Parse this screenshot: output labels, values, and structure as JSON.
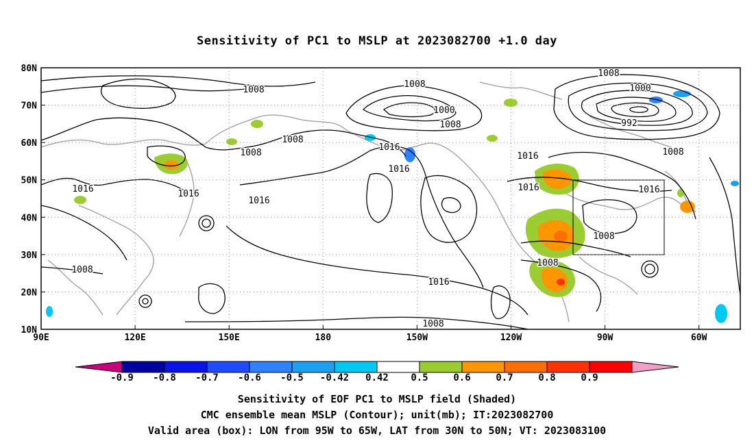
{
  "chart_data": {
    "type": "heatmap",
    "title": "Sensitivity of PC1 to MSLP at 2023082700 +1.0 day",
    "x_ticks": [
      "90E",
      "120E",
      "150E",
      "180",
      "150W",
      "120W",
      "90W",
      "60W"
    ],
    "y_ticks": [
      "10N",
      "20N",
      "30N",
      "40N",
      "50N",
      "60N",
      "70N",
      "80N"
    ],
    "x_range": [
      "90E",
      "45W"
    ],
    "y_range": [
      "10N",
      "80N"
    ],
    "grid": true,
    "colorbar": {
      "levels": [
        "-0.9",
        "-0.8",
        "-0.7",
        "-0.6",
        "-0.5",
        "-0.42",
        "0.42",
        "0.5",
        "0.6",
        "0.7",
        "0.8",
        "0.9"
      ],
      "colors": [
        "#c8007d",
        "#0000a0",
        "#0a14e6",
        "#1e4bff",
        "#2d82ff",
        "#1ea0f0",
        "#00c8f5",
        "#ffffff",
        "#9bcd32",
        "#ff9600",
        "#ff6e00",
        "#ff3200",
        "#ff0000",
        "#f0a0c8"
      ]
    },
    "contour_labels": [
      "1008",
      "1008",
      "1008",
      "1008",
      "1000",
      "1008",
      "1008",
      "1000",
      "992",
      "1016",
      "1016",
      "1016",
      "1016",
      "1016",
      "1016",
      "1016",
      "1016",
      "1016",
      "1008",
      "1008",
      "1008",
      "1008",
      "1008"
    ],
    "valid_box": {
      "lon": [
        "95W",
        "65W"
      ],
      "lat": [
        "30N",
        "50N"
      ]
    },
    "shaded_regions": [
      {
        "name": "southern-plains-positive",
        "lon": -97,
        "lat": 35,
        "value": 0.6
      },
      {
        "name": "gulf-mexico-positive",
        "lon": -95,
        "lat": 22,
        "value": 0.7
      },
      {
        "name": "canada-positive",
        "lon": -97,
        "lat": 52,
        "value": 0.6
      },
      {
        "name": "northeast-china-positive",
        "lon": 128,
        "lat": 55,
        "value": 0.6
      },
      {
        "name": "siberia-positive",
        "lon": 160,
        "lat": 62,
        "value": 0.5
      },
      {
        "name": "labrador-positive",
        "lon": -57,
        "lat": 45,
        "value": 0.6
      },
      {
        "name": "greenland-negative",
        "lon": -70,
        "lat": 70,
        "value": -0.5
      },
      {
        "name": "gulf-alaska-negative",
        "lon": -150,
        "lat": 58,
        "value": -0.5
      },
      {
        "name": "atlantic-negative",
        "lon": -48,
        "lat": 18,
        "value": -0.5
      }
    ]
  },
  "footer": {
    "line1": "Sensitivity of EOF PC1 to MSLP field (Shaded)",
    "line2": "CMC ensemble mean MSLP (Contour); unit(mb); IT:2023082700",
    "line3": "Valid area (box): LON from 95W to 65W, LAT from 30N to 50N; VT: 2023083100"
  }
}
